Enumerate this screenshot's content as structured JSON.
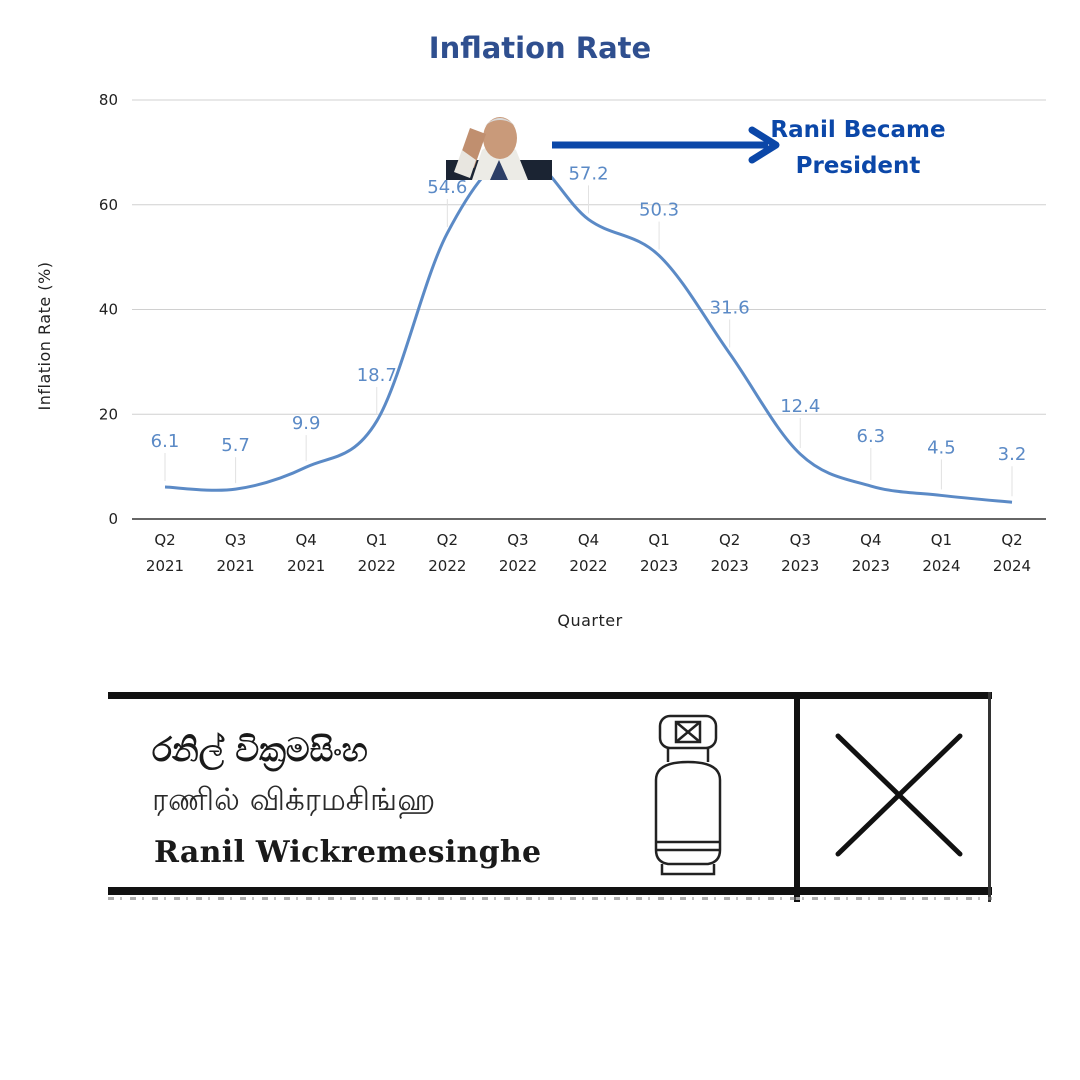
{
  "chart_data": {
    "type": "line",
    "title": "Inflation Rate",
    "xlabel": "Quarter",
    "ylabel": "Inflation Rate (%)",
    "ylim": [
      0,
      80
    ],
    "yticks": [
      0,
      20,
      40,
      60,
      80
    ],
    "grid": true,
    "legend": "none",
    "categories": [
      [
        "Q2",
        "2021"
      ],
      [
        "Q3",
        "2021"
      ],
      [
        "Q4",
        "2021"
      ],
      [
        "Q1",
        "2022"
      ],
      [
        "Q2",
        "2022"
      ],
      [
        "Q3",
        "2022"
      ],
      [
        "Q4",
        "2022"
      ],
      [
        "Q1",
        "2023"
      ],
      [
        "Q2",
        "2023"
      ],
      [
        "Q3",
        "2023"
      ],
      [
        "Q4",
        "2023"
      ],
      [
        "Q1",
        "2024"
      ],
      [
        "Q2",
        "2024"
      ]
    ],
    "series": [
      {
        "color": "#5b8ac6",
        "values": [
          6.1,
          5.7,
          9.9,
          18.7,
          54.6,
          69.8,
          57.2,
          50.3,
          31.6,
          12.4,
          6.3,
          4.5,
          3.2
        ],
        "labels": [
          "6.1",
          "5.7",
          "9.9",
          "18.7",
          "54.6",
          "",
          "57.2",
          "50.3",
          "31.6",
          "12.4",
          "6.3",
          "4.5",
          "3.2"
        ]
      }
    ],
    "annotation": {
      "text_lines": [
        "Ranil Became",
        "President"
      ],
      "color": "#0b47a8",
      "image": "president-saluting-photo",
      "at_category_index": 5
    }
  },
  "ballot": {
    "name_sinhala": "රනිල් වික්‍රමසිංහ",
    "name_tamil": "ரணில் விக்ரமசிங்ஹ",
    "name_english": "Ranil Wickremesinghe",
    "symbol_icon": "gas-cylinder-icon",
    "vote_mark_icon": "cross-mark-icon"
  }
}
